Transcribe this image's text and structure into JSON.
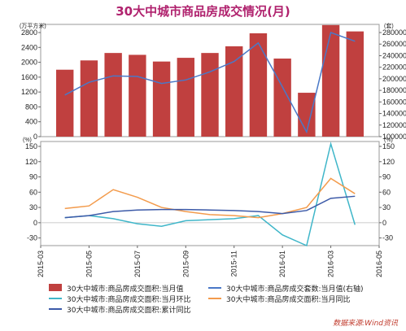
{
  "title": "30大中城市商品房成交情况(月)",
  "source": "数据来源:Wind资讯",
  "colors": {
    "bar": "#c0403f",
    "count": "#4a78c7",
    "mom": "#3fb6c9",
    "yoy": "#f39b4c",
    "cum": "#3c5aa8"
  },
  "chart_data": [
    {
      "type": "bar",
      "panel": "top",
      "left_unit": "(万平方米)",
      "right_unit": "(套)",
      "x": [
        "2015-04",
        "2015-05",
        "2015-06",
        "2015-07",
        "2015-08",
        "2015-09",
        "2015-10",
        "2015-11",
        "2015-12",
        "2016-01",
        "2016-02",
        "2016-03",
        "2016-04"
      ],
      "series": [
        {
          "name": "30大中城市:商品房成交面积:当月值",
          "type": "bar",
          "axis": "left",
          "values": [
            1800,
            2050,
            2250,
            2200,
            2020,
            2120,
            2250,
            2430,
            2780,
            2100,
            1180,
            3000,
            2830
          ]
        },
        {
          "name": "30大中城市:商品房成交套数:当月值(右轴)",
          "type": "line",
          "axis": "right",
          "values": [
            172000,
            194000,
            205000,
            204000,
            192000,
            198000,
            212000,
            230000,
            262000,
            186000,
            108000,
            280000,
            265000
          ]
        }
      ],
      "yleft": {
        "min": 0,
        "max": 2800,
        "ticks": [
          0,
          400,
          800,
          1200,
          1600,
          2000,
          2400,
          2800
        ]
      },
      "yright": {
        "min": 100000,
        "max": 280000,
        "ticks": [
          100000,
          120000,
          140000,
          160000,
          180000,
          200000,
          220000,
          240000,
          260000,
          280000
        ]
      }
    },
    {
      "type": "line",
      "panel": "bottom",
      "left_unit": "(%)",
      "right_unit": "(%)",
      "x_ticks": [
        "2015-03",
        "2015-05",
        "2015-07",
        "2015-09",
        "2015-11",
        "2016-01",
        "2016-03",
        "2016-05"
      ],
      "x": [
        "2015-04",
        "2015-05",
        "2015-06",
        "2015-07",
        "2015-08",
        "2015-09",
        "2015-10",
        "2015-11",
        "2015-12",
        "2016-01",
        "2016-02",
        "2016-03",
        "2016-04"
      ],
      "series": [
        {
          "name": "30大中城市:商品房成交面积:当月环比",
          "values": [
            10,
            14,
            8,
            -2,
            -7,
            4,
            6,
            8,
            14,
            -24,
            -45,
            155,
            -4
          ]
        },
        {
          "name": "30大中城市:商品房成交面积:当月同比",
          "values": [
            28,
            33,
            65,
            50,
            30,
            22,
            16,
            14,
            10,
            18,
            30,
            87,
            57
          ]
        },
        {
          "name": "30大中城市:商品房成交面积:累计同比",
          "values": [
            10,
            14,
            22,
            25,
            26,
            26,
            25,
            24,
            22,
            18,
            24,
            48,
            52
          ]
        }
      ],
      "y": {
        "min": -45,
        "max": 150,
        "ticks": [
          -45,
          -30,
          -15,
          0,
          15,
          30,
          45,
          60,
          75,
          90,
          105,
          120,
          135,
          150
        ]
      }
    }
  ],
  "legend": [
    {
      "label": "30大中城市:商品房成交面积:当月值",
      "kind": "bar",
      "color_key": "bar"
    },
    {
      "label": "30大中城市:商品房成交套数:当月值(右轴)",
      "kind": "line",
      "color_key": "count"
    },
    {
      "label": "30大中城市:商品房成交面积:当月环比",
      "kind": "line",
      "color_key": "mom"
    },
    {
      "label": "30大中城市:商品房成交面积:当月同比",
      "kind": "line",
      "color_key": "yoy"
    },
    {
      "label": "30大中城市:商品房成交面积:累计同比",
      "kind": "line",
      "color_key": "cum"
    }
  ]
}
